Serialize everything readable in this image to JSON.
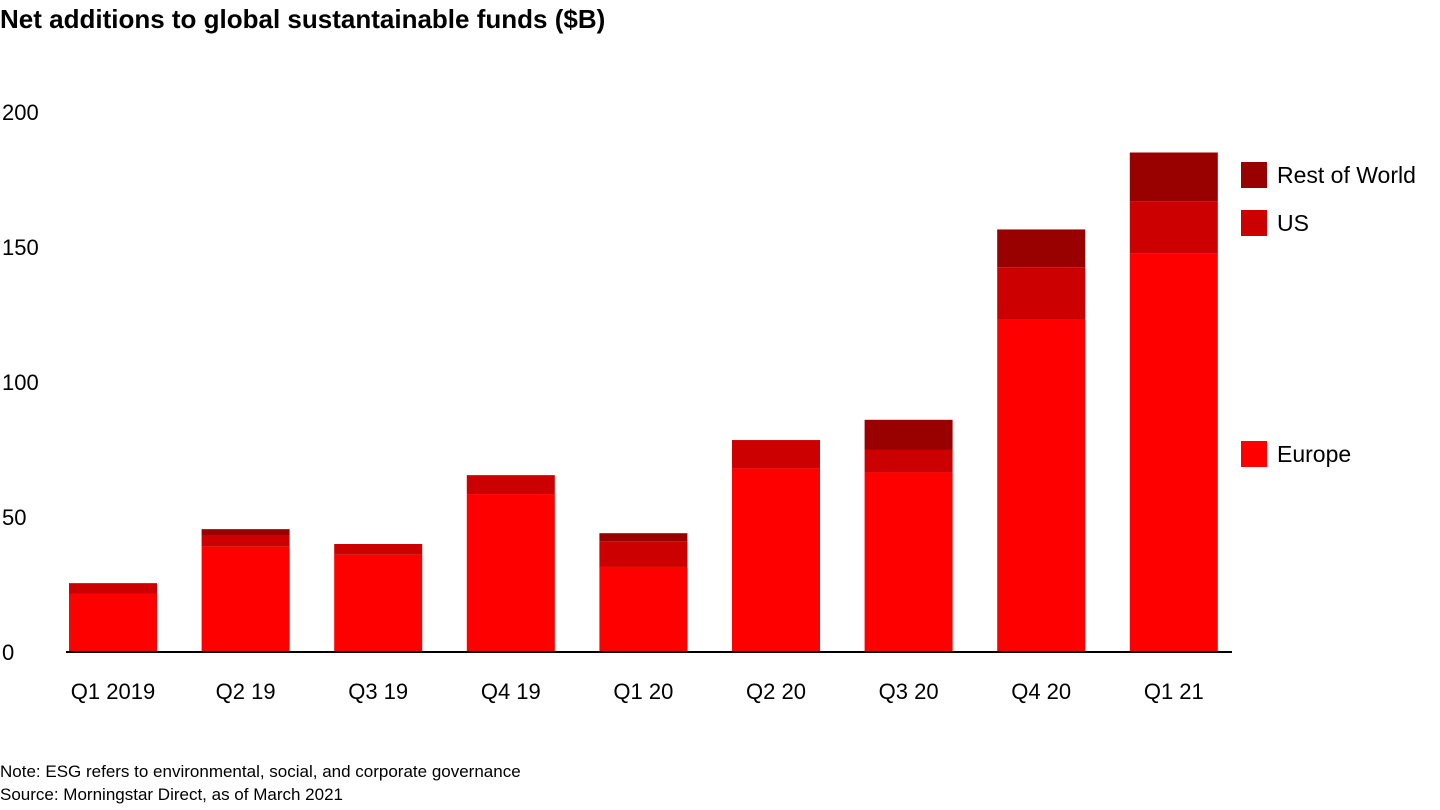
{
  "chart_data": {
    "type": "bar",
    "stacked": true,
    "title": "Net additions to global sustantainable funds ($B)",
    "xlabel": "",
    "ylabel": "",
    "ylim": [
      0,
      200
    ],
    "yticks": [
      0,
      50,
      100,
      150,
      200
    ],
    "grid": false,
    "legend_position": "right",
    "categories": [
      "Q1 2019",
      "Q2 19",
      "Q3 19",
      "Q4 19",
      "Q1 20",
      "Q2 20",
      "Q3 20",
      "Q4 20",
      "Q1 21"
    ],
    "series": [
      {
        "name": "Europe",
        "color": "#ff0000",
        "values": [
          21.5,
          39,
          36,
          58.5,
          31.5,
          68,
          66.5,
          123,
          147.5
        ]
      },
      {
        "name": "US",
        "color": "#cc0000",
        "values": [
          4,
          4,
          4,
          7,
          9.5,
          10.5,
          8.5,
          19.5,
          19.5
        ]
      },
      {
        "name": "Rest of World",
        "color": "#990000",
        "values": [
          0,
          2.5,
          0,
          0,
          3,
          0,
          11,
          14,
          18
        ]
      }
    ]
  },
  "footer": {
    "note": "Note: ESG refers to environmental, social, and corporate governance",
    "source": "Source: Morningstar Direct, as of March 2021"
  }
}
